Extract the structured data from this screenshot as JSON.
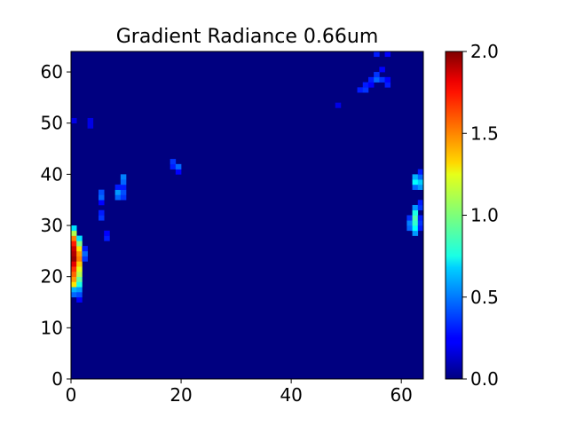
{
  "chart_data": {
    "type": "heatmap",
    "title": "Gradient Radiance 0.66um",
    "xlabel": "",
    "ylabel": "",
    "xlim": [
      0,
      64
    ],
    "ylim": [
      0,
      64
    ],
    "x_ticks": [
      "0",
      "20",
      "40",
      "60"
    ],
    "y_ticks": [
      "0",
      "10",
      "20",
      "30",
      "40",
      "50",
      "60"
    ],
    "colorbar": {
      "colormap": "jet",
      "range": [
        0.0,
        2.0
      ],
      "ticks": [
        "0.0",
        "0.5",
        "1.0",
        "1.5",
        "2.0"
      ]
    },
    "background_value": 0.0,
    "cells": [
      {
        "x": 0,
        "y": 16,
        "v": 0.45
      },
      {
        "x": 0,
        "y": 17,
        "v": 0.6
      },
      {
        "x": 0,
        "y": 18,
        "v": 1.3
      },
      {
        "x": 0,
        "y": 19,
        "v": 1.45
      },
      {
        "x": 0,
        "y": 20,
        "v": 1.55
      },
      {
        "x": 0,
        "y": 21,
        "v": 1.65
      },
      {
        "x": 0,
        "y": 22,
        "v": 1.8
      },
      {
        "x": 0,
        "y": 23,
        "v": 1.95
      },
      {
        "x": 0,
        "y": 24,
        "v": 1.9
      },
      {
        "x": 0,
        "y": 25,
        "v": 1.85
      },
      {
        "x": 0,
        "y": 26,
        "v": 1.7
      },
      {
        "x": 0,
        "y": 27,
        "v": 1.5
      },
      {
        "x": 0,
        "y": 28,
        "v": 1.1
      },
      {
        "x": 0,
        "y": 29,
        "v": 0.7
      },
      {
        "x": 1,
        "y": 15,
        "v": 0.25
      },
      {
        "x": 1,
        "y": 16,
        "v": 0.4
      },
      {
        "x": 1,
        "y": 17,
        "v": 0.55
      },
      {
        "x": 1,
        "y": 18,
        "v": 0.8
      },
      {
        "x": 1,
        "y": 19,
        "v": 0.95
      },
      {
        "x": 1,
        "y": 20,
        "v": 1.1
      },
      {
        "x": 1,
        "y": 21,
        "v": 1.2
      },
      {
        "x": 1,
        "y": 22,
        "v": 1.35
      },
      {
        "x": 1,
        "y": 23,
        "v": 1.5
      },
      {
        "x": 1,
        "y": 24,
        "v": 1.45
      },
      {
        "x": 1,
        "y": 25,
        "v": 1.3
      },
      {
        "x": 1,
        "y": 26,
        "v": 1.0
      },
      {
        "x": 1,
        "y": 27,
        "v": 0.7
      },
      {
        "x": 2,
        "y": 23,
        "v": 0.35
      },
      {
        "x": 2,
        "y": 24,
        "v": 0.45
      },
      {
        "x": 2,
        "y": 25,
        "v": 0.3
      },
      {
        "x": 5,
        "y": 31,
        "v": 0.35
      },
      {
        "x": 5,
        "y": 32,
        "v": 0.3
      },
      {
        "x": 5,
        "y": 34,
        "v": 0.25
      },
      {
        "x": 5,
        "y": 35,
        "v": 0.45
      },
      {
        "x": 5,
        "y": 36,
        "v": 0.4
      },
      {
        "x": 6,
        "y": 27,
        "v": 0.3
      },
      {
        "x": 6,
        "y": 28,
        "v": 0.25
      },
      {
        "x": 8,
        "y": 35,
        "v": 0.45
      },
      {
        "x": 8,
        "y": 36,
        "v": 0.55
      },
      {
        "x": 8,
        "y": 37,
        "v": 0.3
      },
      {
        "x": 9,
        "y": 35,
        "v": 0.35
      },
      {
        "x": 9,
        "y": 36,
        "v": 0.4
      },
      {
        "x": 9,
        "y": 37,
        "v": 0.3
      },
      {
        "x": 9,
        "y": 38,
        "v": 0.45
      },
      {
        "x": 9,
        "y": 39,
        "v": 0.5
      },
      {
        "x": 18,
        "y": 41,
        "v": 0.3
      },
      {
        "x": 18,
        "y": 42,
        "v": 0.35
      },
      {
        "x": 19,
        "y": 40,
        "v": 0.25
      },
      {
        "x": 19,
        "y": 41,
        "v": 0.45
      },
      {
        "x": 0,
        "y": 50,
        "v": 0.2
      },
      {
        "x": 3,
        "y": 49,
        "v": 0.2
      },
      {
        "x": 3,
        "y": 50,
        "v": 0.2
      },
      {
        "x": 48,
        "y": 53,
        "v": 0.2
      },
      {
        "x": 52,
        "y": 56,
        "v": 0.3
      },
      {
        "x": 53,
        "y": 56,
        "v": 0.35
      },
      {
        "x": 53,
        "y": 57,
        "v": 0.3
      },
      {
        "x": 54,
        "y": 57,
        "v": 0.25
      },
      {
        "x": 54,
        "y": 58,
        "v": 0.3
      },
      {
        "x": 55,
        "y": 58,
        "v": 0.45
      },
      {
        "x": 55,
        "y": 59,
        "v": 0.35
      },
      {
        "x": 55,
        "y": 63,
        "v": 0.3
      },
      {
        "x": 56,
        "y": 58,
        "v": 0.35
      },
      {
        "x": 56,
        "y": 60,
        "v": 0.25
      },
      {
        "x": 57,
        "y": 57,
        "v": 0.3
      },
      {
        "x": 57,
        "y": 58,
        "v": 0.25
      },
      {
        "x": 57,
        "y": 63,
        "v": 0.25
      },
      {
        "x": 61,
        "y": 29,
        "v": 0.45
      },
      {
        "x": 61,
        "y": 30,
        "v": 0.5
      },
      {
        "x": 61,
        "y": 31,
        "v": 0.35
      },
      {
        "x": 62,
        "y": 28,
        "v": 0.55
      },
      {
        "x": 62,
        "y": 29,
        "v": 0.75
      },
      {
        "x": 62,
        "y": 30,
        "v": 0.85
      },
      {
        "x": 62,
        "y": 31,
        "v": 0.9
      },
      {
        "x": 62,
        "y": 32,
        "v": 0.8
      },
      {
        "x": 62,
        "y": 33,
        "v": 0.55
      },
      {
        "x": 62,
        "y": 37,
        "v": 0.45
      },
      {
        "x": 62,
        "y": 38,
        "v": 0.75
      },
      {
        "x": 62,
        "y": 39,
        "v": 0.6
      },
      {
        "x": 63,
        "y": 29,
        "v": 0.3
      },
      {
        "x": 63,
        "y": 30,
        "v": 0.35
      },
      {
        "x": 63,
        "y": 31,
        "v": 0.3
      },
      {
        "x": 63,
        "y": 33,
        "v": 0.35
      },
      {
        "x": 63,
        "y": 34,
        "v": 0.3
      },
      {
        "x": 63,
        "y": 37,
        "v": 0.55
      },
      {
        "x": 63,
        "y": 38,
        "v": 0.65
      },
      {
        "x": 63,
        "y": 39,
        "v": 0.45
      },
      {
        "x": 63,
        "y": 40,
        "v": 0.3
      }
    ]
  }
}
